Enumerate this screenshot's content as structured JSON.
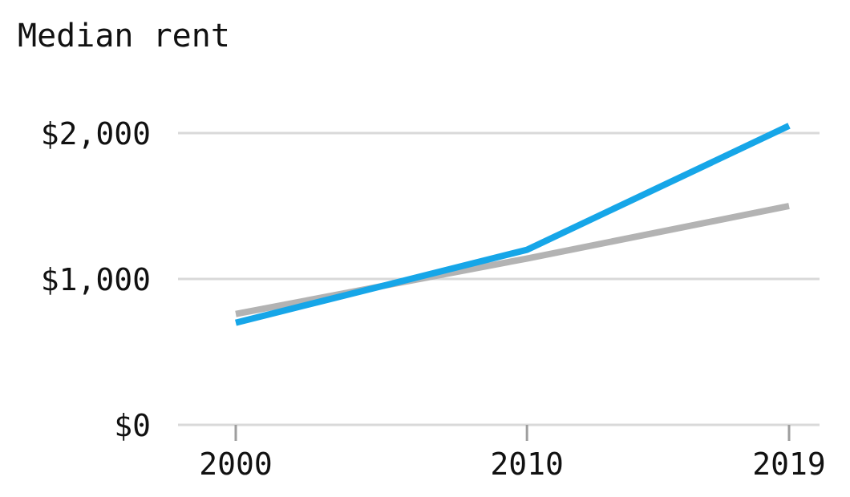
{
  "chart_data": {
    "type": "line",
    "title": "Median rent",
    "x": [
      2000,
      2010,
      2019
    ],
    "x_tick_labels": [
      "2000",
      "2010",
      "2019"
    ],
    "y_tick_values": [
      0,
      1000,
      2000
    ],
    "y_tick_labels": [
      "$0",
      "$1,000",
      "$2,000"
    ],
    "ylim": [
      0,
      2200
    ],
    "xlim": [
      1998,
      2020
    ],
    "grid": true,
    "series": [
      {
        "values": [
          700,
          1200,
          2050
        ],
        "color": "#16a6e8"
      },
      {
        "values": [
          760,
          1140,
          1500
        ],
        "color": "#b3b3b3"
      }
    ]
  }
}
